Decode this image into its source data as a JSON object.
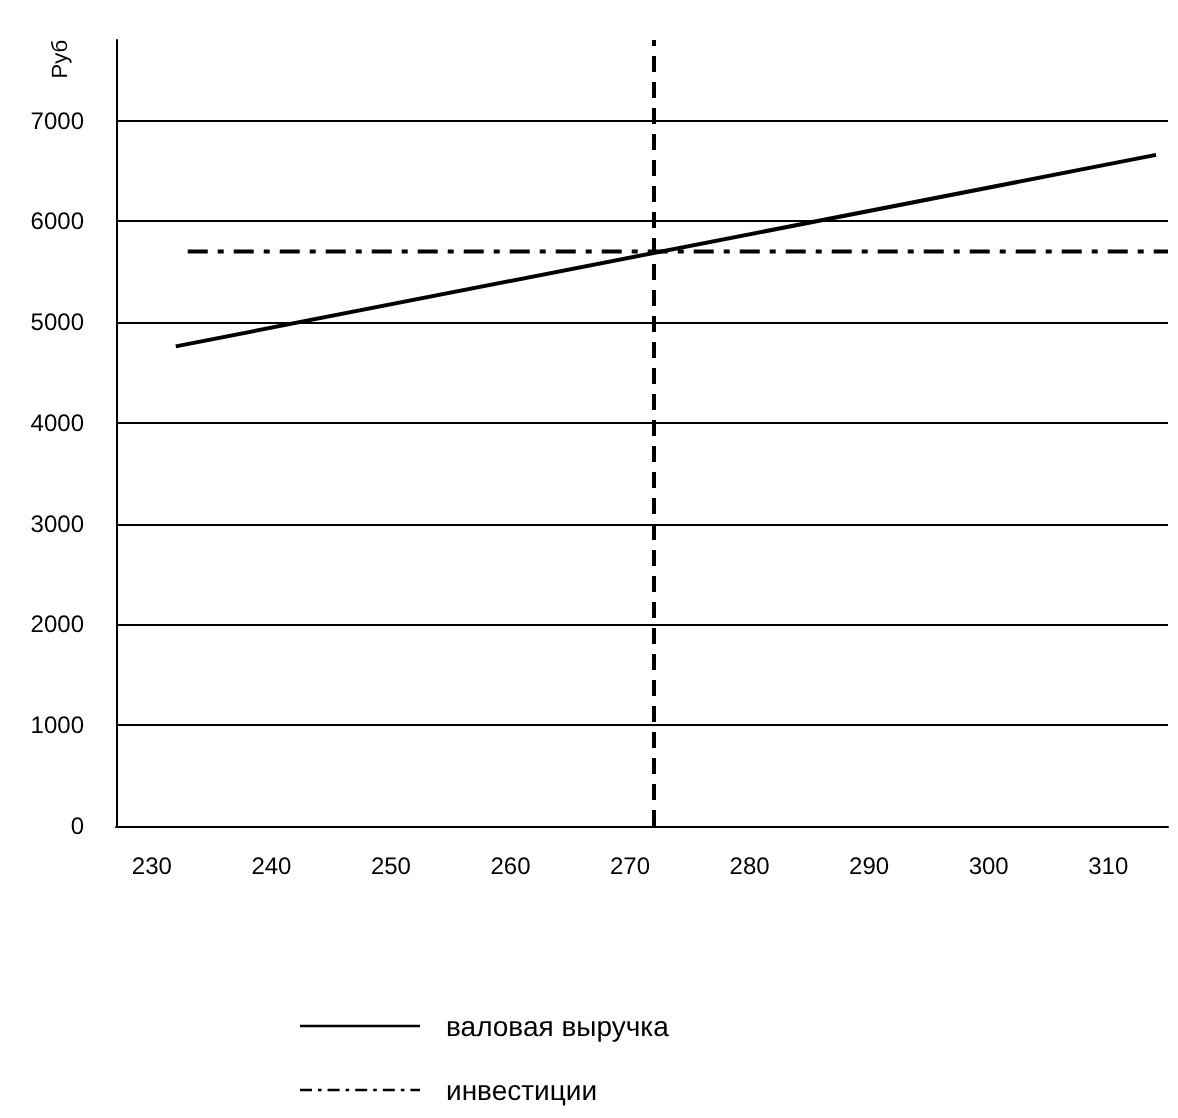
{
  "chart_data": {
    "type": "line",
    "ylabel": "Руб",
    "xlim": [
      227,
      315
    ],
    "xticks": [
      230,
      240,
      250,
      260,
      270,
      280,
      290,
      300,
      310
    ],
    "ylim": [
      0,
      7800
    ],
    "yticks": [
      0,
      1000,
      2000,
      3000,
      4000,
      5000,
      6000,
      7000
    ],
    "grid": "y",
    "legend": "bottom",
    "marker": "none",
    "series": [
      {
        "name": "валовая выручка",
        "color": "#000000",
        "x": [
          232,
          314
        ],
        "values": [
          4760,
          6660
        ],
        "line_style": "solid"
      },
      {
        "name": "инвестиции",
        "color": "#000000",
        "x": [
          233,
          315
        ],
        "values": [
          5700,
          5700
        ],
        "line_style": "dashdot"
      }
    ],
    "ref_lines": [
      {
        "axis": "x",
        "value": 272,
        "line_style": "dashed",
        "color": "#000000"
      }
    ]
  }
}
